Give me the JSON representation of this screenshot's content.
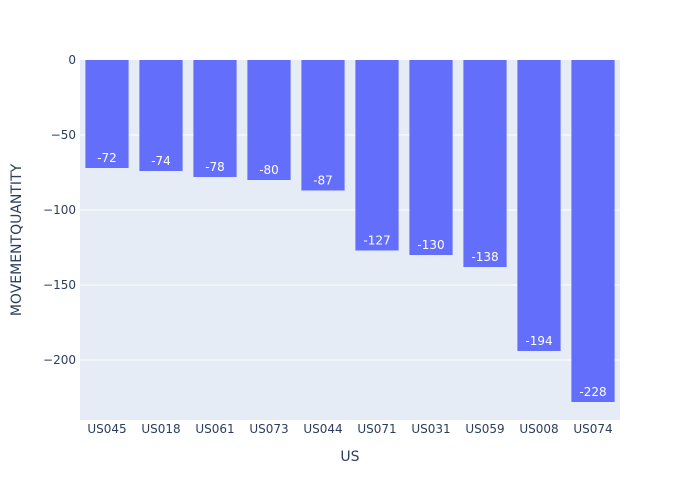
{
  "chart_data": {
    "type": "bar",
    "title": "",
    "xlabel": "US",
    "ylabel": "MOVEMENTQUANTITY",
    "categories": [
      "US045",
      "US018",
      "US061",
      "US073",
      "US044",
      "US071",
      "US031",
      "US059",
      "US008",
      "US074"
    ],
    "values": [
      -72,
      -74,
      -78,
      -80,
      -87,
      -127,
      -130,
      -138,
      -194,
      -228
    ],
    "data_labels": [
      "-72",
      "-74",
      "-78",
      "-80",
      "-87",
      "-127",
      "-130",
      "-138",
      "-194",
      "-228"
    ],
    "yticks": [
      0,
      -50,
      -100,
      -150,
      -200
    ],
    "ytick_labels": [
      "0",
      "−50",
      "−100",
      "−150",
      "−200"
    ],
    "ylim": [
      -240,
      0
    ],
    "grid": true,
    "legend": "none",
    "colors": {
      "bar": "#636efa",
      "plot_bg": "#e5ecf6",
      "grid": "#ffffff",
      "text": "#2a3f5f",
      "bar_label": "#ffffff"
    }
  }
}
